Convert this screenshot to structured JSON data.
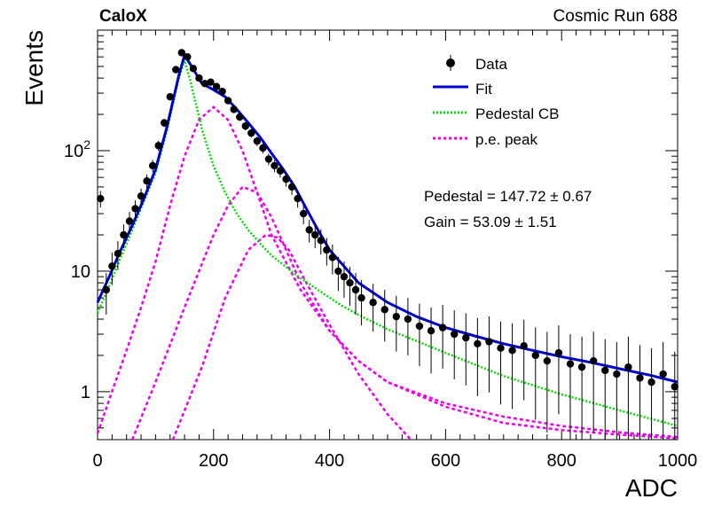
{
  "chart_data": {
    "type": "scatter",
    "title_left": "CaloX",
    "title_right": "Cosmic Run 688",
    "xlabel": "ADC",
    "ylabel": "Events",
    "xlim": [
      0,
      1000
    ],
    "ylim": [
      0.4,
      1000
    ],
    "yscale": "log",
    "grid": false,
    "legend_position": "top-right",
    "x_ticks": [
      {
        "value": 0,
        "label": "0"
      },
      {
        "value": 200,
        "label": "200"
      },
      {
        "value": 400,
        "label": "400"
      },
      {
        "value": 600,
        "label": "600"
      },
      {
        "value": 800,
        "label": "800"
      },
      {
        "value": 1000,
        "label": "1000"
      }
    ],
    "y_ticks": [
      {
        "value": 1,
        "label": "1"
      },
      {
        "value": 10,
        "label": "10"
      },
      {
        "value": 100,
        "label": "10^2"
      }
    ],
    "legend": {
      "data": "Data",
      "fit": "Fit",
      "pedestal": "Pedestal CB",
      "pe": "p.e. peak"
    },
    "annotations": {
      "pedestal": "Pedestal = 147.72 ± 0.67",
      "gain": "Gain = 53.09 ± 1.51"
    },
    "colors": {
      "data": "#000000",
      "fit": "#0000cc",
      "pedestal": "#00dd00",
      "pe": "#ee00ee"
    },
    "data_points": {
      "x": [
        5,
        15,
        25,
        35,
        45,
        55,
        65,
        75,
        85,
        95,
        105,
        115,
        125,
        135,
        145,
        155,
        165,
        175,
        185,
        195,
        205,
        215,
        225,
        235,
        245,
        255,
        265,
        275,
        285,
        295,
        305,
        315,
        325,
        335,
        345,
        355,
        365,
        375,
        385,
        395,
        405,
        415,
        425,
        435,
        445,
        455,
        475,
        495,
        515,
        535,
        555,
        575,
        595,
        615,
        635,
        655,
        675,
        695,
        715,
        735,
        755,
        775,
        795,
        815,
        835,
        855,
        875,
        895,
        915,
        935,
        955,
        975,
        995
      ],
      "y": [
        40,
        7,
        11,
        14,
        20,
        26,
        33,
        42,
        56,
        75,
        110,
        170,
        280,
        470,
        650,
        600,
        480,
        400,
        360,
        370,
        340,
        310,
        260,
        220,
        190,
        160,
        140,
        120,
        105,
        85,
        75,
        68,
        58,
        50,
        40,
        30,
        22,
        20,
        18,
        15,
        13,
        10,
        9,
        8,
        7,
        6,
        5.5,
        4.8,
        4.2,
        4,
        3.5,
        3.2,
        3.4,
        3,
        2.8,
        2.5,
        2.6,
        2.3,
        2.2,
        2.4,
        2,
        1.8,
        2.1,
        1.7,
        1.6,
        1.8,
        1.5,
        1.4,
        1.6,
        1.3,
        1.2,
        1.4,
        1.1
      ]
    },
    "fit_curve": {
      "x": [
        0,
        20,
        40,
        60,
        80,
        100,
        120,
        140,
        150,
        160,
        180,
        200,
        220,
        240,
        260,
        280,
        300,
        320,
        340,
        360,
        380,
        400,
        450,
        500,
        550,
        600,
        650,
        700,
        750,
        800,
        850,
        900,
        950,
        1000
      ],
      "y": [
        5.5,
        9,
        15,
        24,
        40,
        70,
        160,
        420,
        620,
        520,
        360,
        320,
        280,
        220,
        170,
        130,
        95,
        70,
        50,
        33,
        22,
        15,
        8,
        5.5,
        4.2,
        3.4,
        2.9,
        2.5,
        2.2,
        1.95,
        1.75,
        1.55,
        1.38,
        1.2
      ]
    },
    "pedestal_curve": {
      "x": [
        0,
        20,
        40,
        60,
        80,
        100,
        120,
        140,
        150,
        160,
        170,
        180,
        200,
        220,
        240,
        260,
        280,
        300,
        340,
        380,
        420,
        460,
        500,
        600,
        700,
        800,
        900,
        1000
      ],
      "y": [
        4.5,
        7.5,
        13,
        22,
        38,
        65,
        150,
        400,
        560,
        380,
        240,
        150,
        75,
        45,
        30,
        22,
        17,
        13.5,
        9.5,
        7,
        5.2,
        4.1,
        3.3,
        2.1,
        1.35,
        0.95,
        0.7,
        0.52
      ]
    },
    "pe_peaks": [
      {
        "x": [
          0,
          25,
          50,
          75,
          100,
          125,
          150,
          175,
          200,
          225,
          250,
          275,
          300,
          350,
          400,
          450,
          500,
          600,
          700,
          800,
          900,
          1000
        ],
        "y": [
          0.45,
          1.0,
          2.2,
          5,
          12,
          35,
          90,
          180,
          230,
          180,
          100,
          45,
          20,
          7,
          3.2,
          1.8,
          1.2,
          0.8,
          0.62,
          0.52,
          0.46,
          0.42
        ]
      },
      {
        "x": [
          60,
          100,
          150,
          200,
          225,
          250,
          275,
          300,
          325,
          350,
          400,
          450,
          500,
          600,
          700,
          800,
          900,
          1000
        ],
        "y": [
          0.4,
          1.2,
          5,
          20,
          35,
          50,
          45,
          28,
          15,
          8,
          3.2,
          1.8,
          1.2,
          0.75,
          0.55,
          0.48,
          0.44,
          0.41
        ]
      },
      {
        "x": [
          130,
          180,
          220,
          260,
          290,
          310,
          330,
          360,
          400,
          450,
          500,
          540
        ],
        "y": [
          0.4,
          1.6,
          6,
          15,
          20,
          19,
          15,
          8,
          3.6,
          1.4,
          0.65,
          0.4
        ]
      }
    ]
  }
}
